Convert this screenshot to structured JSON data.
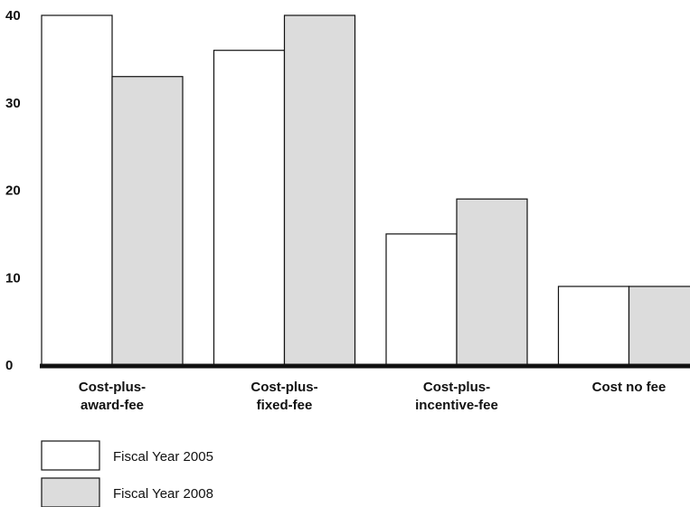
{
  "chart_data": {
    "type": "bar",
    "title": "",
    "xlabel": "",
    "ylabel": "",
    "ylim": [
      0,
      40
    ],
    "yticks": [
      0,
      10,
      20,
      30,
      40
    ],
    "grid": false,
    "legend_position": "bottom-left",
    "categories": [
      [
        "Cost-plus-",
        "award-fee"
      ],
      [
        "Cost-plus-",
        "fixed-fee"
      ],
      [
        "Cost-plus-",
        "incentive-fee"
      ],
      [
        "Cost no fee"
      ]
    ],
    "series": [
      {
        "name": "Fiscal Year 2005",
        "color": "#ffffff",
        "values": [
          40,
          36,
          15,
          9
        ]
      },
      {
        "name": "Fiscal Year 2008",
        "color": "#dcdcdc",
        "values": [
          33,
          40,
          19,
          9
        ]
      }
    ]
  }
}
